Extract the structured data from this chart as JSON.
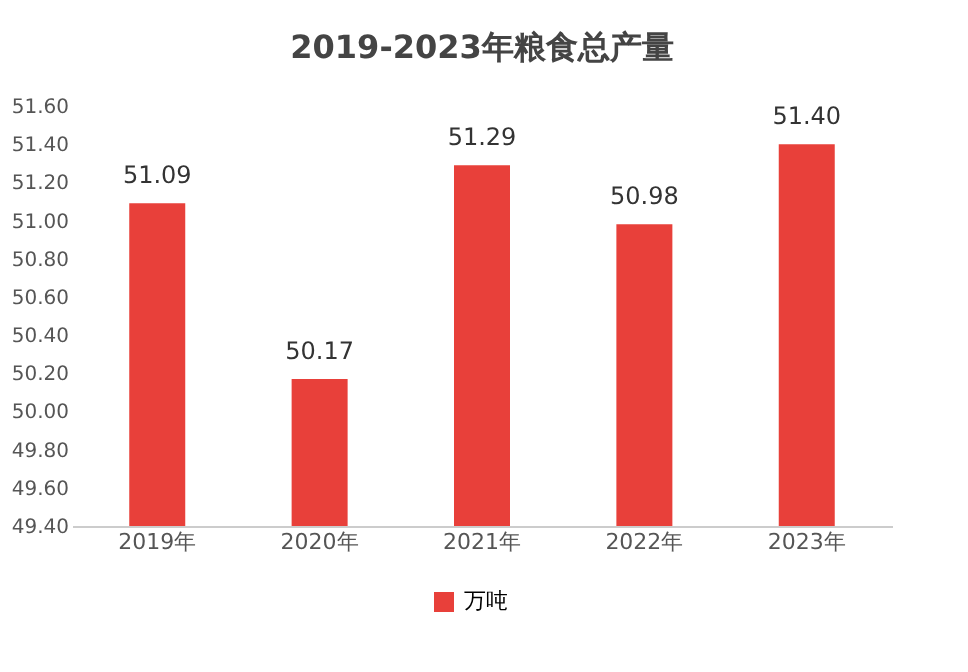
{
  "chart_data": {
    "type": "bar",
    "title": "2019-2023年粮食总产量",
    "categories": [
      "2019年",
      "2020年",
      "2021年",
      "2022年",
      "2023年"
    ],
    "series": [
      {
        "name": "万吨",
        "color": "#e8403a",
        "values": [
          51.09,
          50.17,
          51.29,
          50.98,
          51.4
        ],
        "value_labels": [
          "51.09",
          "50.17",
          "51.29",
          "50.98",
          "51.40"
        ]
      }
    ],
    "ylim": [
      49.4,
      51.6
    ],
    "yticks": [
      {
        "value": 49.4,
        "label": "49.40"
      },
      {
        "value": 49.6,
        "label": "49.60"
      },
      {
        "value": 49.8,
        "label": "49.80"
      },
      {
        "value": 50.0,
        "label": "50.00"
      },
      {
        "value": 50.2,
        "label": "50.20"
      },
      {
        "value": 50.4,
        "label": "50.40"
      },
      {
        "value": 50.6,
        "label": "50.60"
      },
      {
        "value": 50.8,
        "label": "50.80"
      },
      {
        "value": 51.0,
        "label": "51.00"
      },
      {
        "value": 51.2,
        "label": "51.20"
      },
      {
        "value": 51.4,
        "label": "51.40"
      },
      {
        "value": 51.6,
        "label": "51.60"
      }
    ],
    "grid": false,
    "legend": "bottom"
  }
}
